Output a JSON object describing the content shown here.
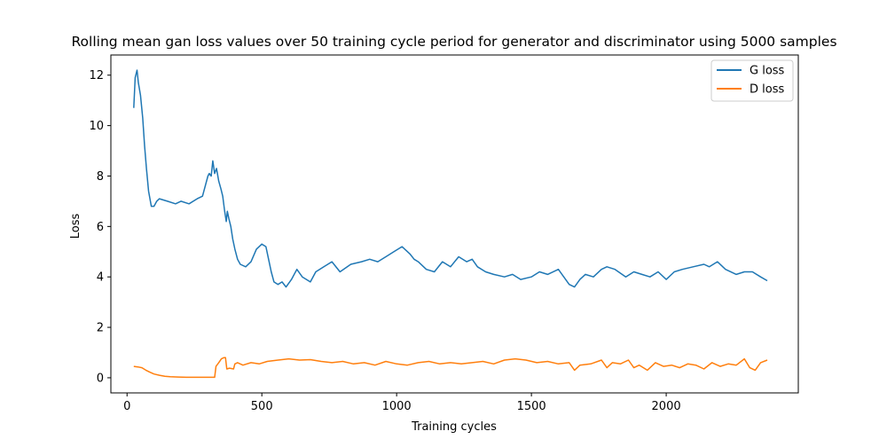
{
  "chart_data": {
    "type": "line",
    "title": "Rolling mean gan loss values over 50 training cycle period for generator and discriminator using 5000 samples",
    "xlabel": "Training cycles",
    "ylabel": "Loss",
    "xlim": [
      -60,
      2490
    ],
    "ylim": [
      -0.6,
      12.8
    ],
    "xticks": [
      0,
      500,
      1000,
      1500,
      2000
    ],
    "yticks": [
      0,
      2,
      4,
      6,
      8,
      10,
      12
    ],
    "grid": false,
    "legend_position": "top-right",
    "series": [
      {
        "name": "G loss",
        "color": "#1f77b4",
        "x": [
          25,
          30,
          37,
          42,
          50,
          58,
          65,
          72,
          80,
          90,
          100,
          110,
          120,
          150,
          180,
          200,
          230,
          260,
          280,
          300,
          305,
          312,
          318,
          325,
          332,
          340,
          348,
          355,
          362,
          368,
          372,
          378,
          385,
          392,
          400,
          410,
          420,
          440,
          460,
          480,
          500,
          515,
          525,
          535,
          545,
          560,
          575,
          590,
          610,
          630,
          650,
          680,
          700,
          730,
          760,
          790,
          830,
          870,
          900,
          930,
          960,
          990,
          1020,
          1050,
          1065,
          1080,
          1110,
          1140,
          1170,
          1200,
          1230,
          1260,
          1280,
          1300,
          1330,
          1360,
          1400,
          1430,
          1460,
          1500,
          1530,
          1560,
          1600,
          1620,
          1640,
          1660,
          1680,
          1700,
          1730,
          1760,
          1780,
          1810,
          1850,
          1880,
          1910,
          1940,
          1970,
          2000,
          2030,
          2060,
          2100,
          2140,
          2160,
          2190,
          2220,
          2260,
          2290,
          2320,
          2350,
          2375
        ],
        "y": [
          10.7,
          11.9,
          12.2,
          11.7,
          11.2,
          10.3,
          9.2,
          8.3,
          7.4,
          6.8,
          6.8,
          7.0,
          7.1,
          7.0,
          6.9,
          7.0,
          6.9,
          7.1,
          7.2,
          8.0,
          8.1,
          8.0,
          8.6,
          8.1,
          8.3,
          7.8,
          7.5,
          7.2,
          6.6,
          6.2,
          6.6,
          6.3,
          6.0,
          5.5,
          5.1,
          4.7,
          4.5,
          4.4,
          4.6,
          5.1,
          5.3,
          5.2,
          4.7,
          4.2,
          3.8,
          3.7,
          3.8,
          3.6,
          3.9,
          4.3,
          4.0,
          3.8,
          4.2,
          4.4,
          4.6,
          4.2,
          4.5,
          4.6,
          4.7,
          4.6,
          4.8,
          5.0,
          5.2,
          4.9,
          4.7,
          4.6,
          4.3,
          4.2,
          4.6,
          4.4,
          4.8,
          4.6,
          4.7,
          4.4,
          4.2,
          4.1,
          4.0,
          4.1,
          3.9,
          4.0,
          4.2,
          4.1,
          4.3,
          4.0,
          3.7,
          3.6,
          3.9,
          4.1,
          4.0,
          4.3,
          4.4,
          4.3,
          4.0,
          4.2,
          4.1,
          4.0,
          4.2,
          3.9,
          4.2,
          4.3,
          4.4,
          4.5,
          4.4,
          4.6,
          4.3,
          4.1,
          4.2,
          4.2,
          4.0,
          3.85
        ]
      },
      {
        "name": "D loss",
        "color": "#ff7f0e",
        "x": [
          25,
          40,
          55,
          70,
          85,
          100,
          120,
          140,
          160,
          190,
          220,
          260,
          300,
          325,
          330,
          340,
          350,
          360,
          365,
          370,
          380,
          395,
          400,
          410,
          430,
          460,
          490,
          520,
          560,
          600,
          640,
          680,
          720,
          760,
          800,
          840,
          880,
          920,
          960,
          1000,
          1040,
          1080,
          1120,
          1160,
          1200,
          1240,
          1280,
          1320,
          1360,
          1400,
          1440,
          1480,
          1520,
          1560,
          1600,
          1640,
          1660,
          1680,
          1720,
          1760,
          1780,
          1800,
          1830,
          1860,
          1880,
          1900,
          1930,
          1960,
          1990,
          2020,
          2050,
          2080,
          2110,
          2140,
          2170,
          2200,
          2230,
          2260,
          2290,
          2310,
          2330,
          2350,
          2375
        ],
        "y": [
          0.45,
          0.43,
          0.4,
          0.3,
          0.22,
          0.15,
          0.1,
          0.06,
          0.04,
          0.03,
          0.02,
          0.02,
          0.02,
          0.02,
          0.45,
          0.6,
          0.75,
          0.8,
          0.8,
          0.35,
          0.38,
          0.35,
          0.55,
          0.6,
          0.5,
          0.6,
          0.55,
          0.65,
          0.7,
          0.75,
          0.7,
          0.72,
          0.65,
          0.6,
          0.65,
          0.55,
          0.6,
          0.5,
          0.65,
          0.55,
          0.5,
          0.6,
          0.65,
          0.55,
          0.6,
          0.55,
          0.6,
          0.65,
          0.55,
          0.7,
          0.75,
          0.7,
          0.6,
          0.65,
          0.55,
          0.6,
          0.3,
          0.5,
          0.55,
          0.7,
          0.4,
          0.6,
          0.55,
          0.7,
          0.4,
          0.5,
          0.3,
          0.6,
          0.45,
          0.5,
          0.4,
          0.55,
          0.5,
          0.35,
          0.6,
          0.45,
          0.55,
          0.5,
          0.75,
          0.4,
          0.3,
          0.6,
          0.7
        ]
      }
    ]
  }
}
